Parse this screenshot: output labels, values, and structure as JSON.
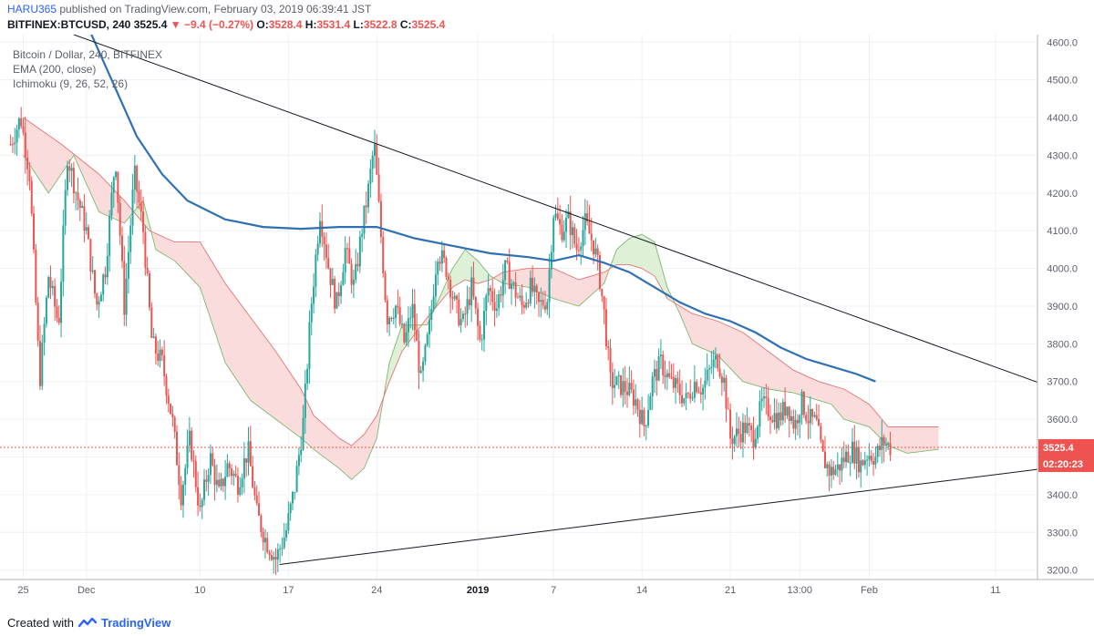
{
  "header": {
    "user": "HARU365",
    "published": "published on TradingView.com, February 03, 2019 06:39:41 JST",
    "symbol": "BITFINEX:BTCUSD, 240",
    "last": "3525.4",
    "change": "−9.4 (−0.27%)",
    "o_label": "O:",
    "o": "3528.4",
    "h_label": "H:",
    "h": "3531.4",
    "l_label": "L:",
    "l": "3522.8",
    "c_label": "C:",
    "c": "3525.4"
  },
  "legend": {
    "line1": "Bitcoin / Dollar, 240, BITFINEX",
    "line2": "EMA (200, close)",
    "line3": "Ichimoku (9, 26, 52, 26)"
  },
  "footer": {
    "prefix": "Created with",
    "brand": "TradingView"
  },
  "colors": {
    "up": "#26a69a",
    "down": "#ef5350",
    "ema": "#2f6fb3",
    "cloud_bull": "#dff0d8",
    "cloud_bear": "#fbdcdc",
    "trendline": "#131722"
  },
  "chart_data": {
    "type": "candlestick",
    "ylim": [
      3175,
      4620
    ],
    "y_ticks": [
      3200,
      3300,
      3400,
      3500,
      3600,
      3700,
      3800,
      3900,
      4000,
      4100,
      4200,
      4300,
      4400,
      4500,
      4600
    ],
    "y_tick_labels": [
      "3200.0",
      "3300.0",
      "3400.0",
      "3500.0",
      "3600.0",
      "3700.0",
      "3800.0",
      "3900.0",
      "4000.0",
      "4100.0",
      "4200.0",
      "4300.0",
      "4400.0",
      "4500.0",
      "4600.0"
    ],
    "x_ticks": [
      {
        "day": -1,
        "label": "25"
      },
      {
        "day": 4,
        "label": "Dec"
      },
      {
        "day": 13,
        "label": "10"
      },
      {
        "day": 20,
        "label": "17"
      },
      {
        "day": 27,
        "label": "24"
      },
      {
        "day": 35,
        "label": "2019",
        "bold": true
      },
      {
        "day": 41,
        "label": "7"
      },
      {
        "day": 48,
        "label": "14"
      },
      {
        "day": 55,
        "label": "21"
      },
      {
        "day": 60.5,
        "label": "13:00"
      },
      {
        "day": 66,
        "label": "Feb"
      },
      {
        "day": 76,
        "label": "11"
      }
    ],
    "last_price": 3525.4,
    "last_price_label": "3525.4",
    "countdown": "02:20:23",
    "price_path": [
      [
        -2,
        4330
      ],
      [
        -1.2,
        4400
      ],
      [
        -0.5,
        4250
      ],
      [
        0.3,
        3700
      ],
      [
        1,
        3980
      ],
      [
        1.8,
        3850
      ],
      [
        2.5,
        4300
      ],
      [
        3.2,
        4200
      ],
      [
        4,
        4100
      ],
      [
        4.8,
        3900
      ],
      [
        5.5,
        4000
      ],
      [
        6.3,
        4300
      ],
      [
        7,
        3900
      ],
      [
        7.8,
        4250
      ],
      [
        8.5,
        4100
      ],
      [
        9.2,
        3800
      ],
      [
        10,
        3750
      ],
      [
        10.8,
        3600
      ],
      [
        11.5,
        3400
      ],
      [
        12.2,
        3550
      ],
      [
        13,
        3350
      ],
      [
        13.8,
        3500
      ],
      [
        14.5,
        3400
      ],
      [
        15.2,
        3480
      ],
      [
        16,
        3430
      ],
      [
        16.8,
        3520
      ],
      [
        17.5,
        3350
      ],
      [
        18.2,
        3280
      ],
      [
        19,
        3230
      ],
      [
        19.8,
        3300
      ],
      [
        20.5,
        3420
      ],
      [
        21.2,
        3600
      ],
      [
        21.8,
        3900
      ],
      [
        22.5,
        4150
      ],
      [
        23.2,
        4000
      ],
      [
        23.8,
        3900
      ],
      [
        24.5,
        4050
      ],
      [
        25.2,
        3950
      ],
      [
        25.8,
        4100
      ],
      [
        26.3,
        4200
      ],
      [
        26.8,
        4330
      ],
      [
        27.3,
        4100
      ],
      [
        27.8,
        3870
      ],
      [
        28.5,
        3900
      ],
      [
        29.2,
        3800
      ],
      [
        29.8,
        3900
      ],
      [
        30.5,
        3700
      ],
      [
        31.2,
        3850
      ],
      [
        31.8,
        4050
      ],
      [
        32.5,
        4000
      ],
      [
        33.2,
        3900
      ],
      [
        33.8,
        3850
      ],
      [
        34.5,
        3950
      ],
      [
        35.2,
        3800
      ],
      [
        35.8,
        3950
      ],
      [
        36.5,
        3900
      ],
      [
        37.2,
        4000
      ],
      [
        37.8,
        3950
      ],
      [
        38.5,
        3900
      ],
      [
        39.2,
        3950
      ],
      [
        39.8,
        3900
      ],
      [
        40.5,
        3920
      ],
      [
        41,
        4150
      ],
      [
        41.6,
        4100
      ],
      [
        42.2,
        4130
      ],
      [
        42.8,
        4050
      ],
      [
        43.5,
        4120
      ],
      [
        44.2,
        4060
      ],
      [
        44.6,
        3990
      ],
      [
        45,
        3880
      ],
      [
        45.5,
        3700
      ],
      [
        46.2,
        3690
      ],
      [
        46.8,
        3680
      ],
      [
        47.5,
        3650
      ],
      [
        48.2,
        3580
      ],
      [
        48.8,
        3700
      ],
      [
        49.5,
        3750
      ],
      [
        50.2,
        3700
      ],
      [
        50.8,
        3680
      ],
      [
        51.5,
        3650
      ],
      [
        52.2,
        3700
      ],
      [
        52.8,
        3680
      ],
      [
        53.5,
        3740
      ],
      [
        54,
        3760
      ],
      [
        54.5,
        3700
      ],
      [
        55,
        3550
      ],
      [
        55.6,
        3560
      ],
      [
        56.2,
        3580
      ],
      [
        56.8,
        3550
      ],
      [
        57.5,
        3640
      ],
      [
        58.2,
        3620
      ],
      [
        58.8,
        3600
      ],
      [
        59.5,
        3640
      ],
      [
        60.1,
        3580
      ],
      [
        60.6,
        3650
      ],
      [
        61.2,
        3600
      ],
      [
        61.8,
        3590
      ],
      [
        62.3,
        3500
      ],
      [
        62.9,
        3460
      ],
      [
        63.5,
        3470
      ],
      [
        64.1,
        3500
      ],
      [
        64.7,
        3520
      ],
      [
        65.3,
        3480
      ],
      [
        65.9,
        3510
      ],
      [
        66.5,
        3500
      ],
      [
        67.1,
        3540
      ],
      [
        67.7,
        3525
      ]
    ],
    "ema_200": [
      [
        -1,
        4900
      ],
      [
        4,
        4650
      ],
      [
        6,
        4500
      ],
      [
        8,
        4350
      ],
      [
        10,
        4250
      ],
      [
        12,
        4180
      ],
      [
        15,
        4130
      ],
      [
        18,
        4110
      ],
      [
        21,
        4105
      ],
      [
        24,
        4110
      ],
      [
        27,
        4110
      ],
      [
        30,
        4080
      ],
      [
        33,
        4060
      ],
      [
        36,
        4040
      ],
      [
        39,
        4030
      ],
      [
        41,
        4020
      ],
      [
        43,
        4035
      ],
      [
        45,
        4015
      ],
      [
        47,
        3990
      ],
      [
        49,
        3950
      ],
      [
        51,
        3910
      ],
      [
        53,
        3880
      ],
      [
        55,
        3860
      ],
      [
        57,
        3830
      ],
      [
        59,
        3790
      ],
      [
        61,
        3760
      ],
      [
        63,
        3740
      ],
      [
        65,
        3720
      ],
      [
        66.5,
        3700
      ]
    ],
    "cloud_span_a": [
      [
        -1,
        4300
      ],
      [
        1,
        4200
      ],
      [
        3,
        4300
      ],
      [
        5,
        4150
      ],
      [
        7,
        4120
      ],
      [
        8.5,
        4180
      ],
      [
        9.5,
        4050
      ],
      [
        11,
        4020
      ],
      [
        13,
        3950
      ],
      [
        15,
        3750
      ],
      [
        17,
        3650
      ],
      [
        19,
        3600
      ],
      [
        21,
        3550
      ],
      [
        22,
        3520
      ],
      [
        24,
        3470
      ],
      [
        25,
        3440
      ],
      [
        26,
        3470
      ],
      [
        27,
        3550
      ],
      [
        28,
        3750
      ],
      [
        29,
        3850
      ],
      [
        31,
        3850
      ],
      [
        33,
        4000
      ],
      [
        34,
        4050
      ],
      [
        35,
        4020
      ],
      [
        36,
        3980
      ],
      [
        37,
        3960
      ],
      [
        39,
        3950
      ],
      [
        41,
        3920
      ],
      [
        43,
        3900
      ],
      [
        44,
        3930
      ],
      [
        45,
        3960
      ],
      [
        46,
        4050
      ],
      [
        47,
        4080
      ],
      [
        48,
        4090
      ],
      [
        49,
        4070
      ],
      [
        50,
        3950
      ],
      [
        51,
        3880
      ],
      [
        52,
        3800
      ],
      [
        54,
        3770
      ],
      [
        56,
        3700
      ],
      [
        58,
        3680
      ],
      [
        60,
        3670
      ],
      [
        62,
        3650
      ],
      [
        63,
        3640
      ],
      [
        64,
        3600
      ],
      [
        66,
        3580
      ],
      [
        67.5,
        3530
      ],
      [
        69,
        3510
      ],
      [
        71.5,
        3520
      ]
    ],
    "cloud_span_b": [
      [
        -1,
        4400
      ],
      [
        2,
        4330
      ],
      [
        5,
        4250
      ],
      [
        7,
        4180
      ],
      [
        9,
        4100
      ],
      [
        11,
        4070
      ],
      [
        13,
        4070
      ],
      [
        15,
        3960
      ],
      [
        17,
        3870
      ],
      [
        19,
        3780
      ],
      [
        21,
        3680
      ],
      [
        22,
        3610
      ],
      [
        24,
        3550
      ],
      [
        25,
        3530
      ],
      [
        26,
        3560
      ],
      [
        27,
        3610
      ],
      [
        28,
        3700
      ],
      [
        29,
        3780
      ],
      [
        31,
        3870
      ],
      [
        33,
        3950
      ],
      [
        34,
        3970
      ],
      [
        35,
        3960
      ],
      [
        36,
        3970
      ],
      [
        37,
        3990
      ],
      [
        39,
        4000
      ],
      [
        41,
        4000
      ],
      [
        43,
        3970
      ],
      [
        44,
        3980
      ],
      [
        45,
        3990
      ],
      [
        46,
        4010
      ],
      [
        47,
        4010
      ],
      [
        48,
        4000
      ],
      [
        49,
        3980
      ],
      [
        50,
        3920
      ],
      [
        51,
        3900
      ],
      [
        52,
        3880
      ],
      [
        54,
        3860
      ],
      [
        56,
        3830
      ],
      [
        58,
        3780
      ],
      [
        60,
        3730
      ],
      [
        62,
        3700
      ],
      [
        63,
        3690
      ],
      [
        64,
        3680
      ],
      [
        66,
        3640
      ],
      [
        67.5,
        3580
      ],
      [
        69,
        3580
      ],
      [
        71.5,
        3580
      ]
    ],
    "trendlines": [
      {
        "from": [
          3,
          4620
        ],
        "to": [
          80,
          3690
        ]
      },
      {
        "from": [
          19.3,
          3215
        ],
        "to": [
          80,
          3470
        ]
      }
    ]
  }
}
